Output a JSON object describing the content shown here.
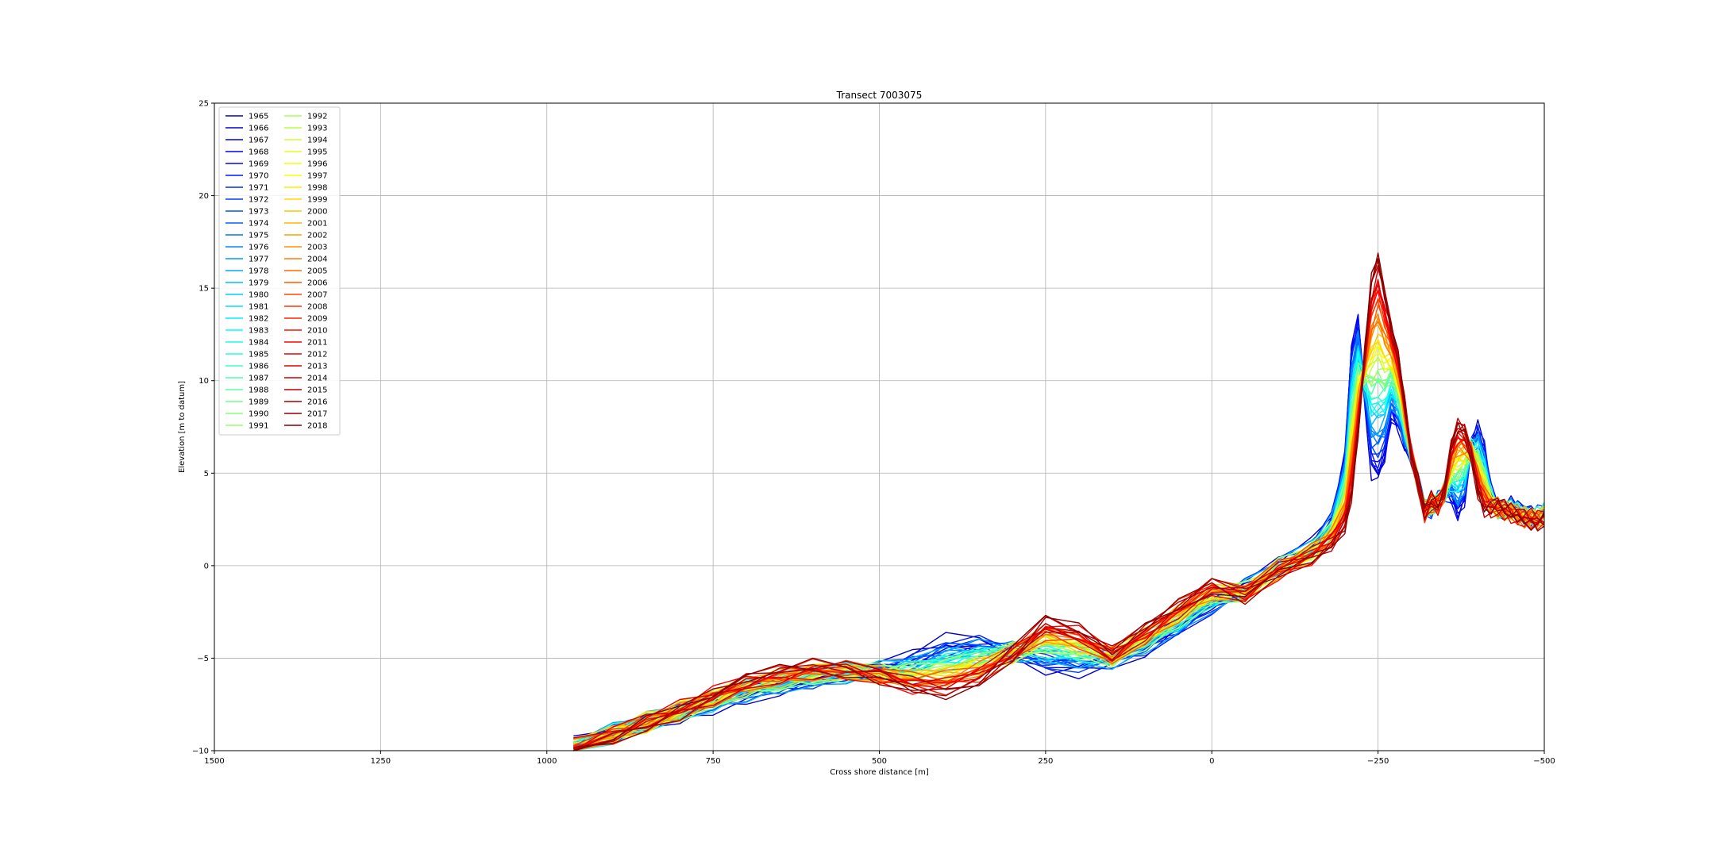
{
  "chart_data": {
    "type": "line",
    "title": "Transect 7003075",
    "xlabel": "Cross shore distance [m]",
    "ylabel": "Elevation [m to datum]",
    "xlim": [
      1500,
      -500
    ],
    "ylim": [
      -10,
      25
    ],
    "x_ticks": [
      1500,
      1250,
      1000,
      750,
      500,
      250,
      0,
      -250,
      -500
    ],
    "x_tick_labels": [
      "1500",
      "1250",
      "1000",
      "750",
      "500",
      "250",
      "0",
      "−250",
      "−500"
    ],
    "y_ticks": [
      -10,
      -5,
      0,
      5,
      10,
      15,
      20,
      25
    ],
    "y_tick_labels": [
      "−10",
      "−5",
      "0",
      "5",
      "10",
      "15",
      "20",
      "25"
    ],
    "grid": true,
    "legend_position": "top-left",
    "legend_columns": 2,
    "colormap": "jet",
    "colors": {
      "axes": "#000000",
      "grid": "#b0b0b0",
      "background": "#ffffff"
    },
    "series": [
      {
        "name": "1965"
      },
      {
        "name": "1966"
      },
      {
        "name": "1967"
      },
      {
        "name": "1968"
      },
      {
        "name": "1969"
      },
      {
        "name": "1970"
      },
      {
        "name": "1971"
      },
      {
        "name": "1972"
      },
      {
        "name": "1973"
      },
      {
        "name": "1974"
      },
      {
        "name": "1975"
      },
      {
        "name": "1976"
      },
      {
        "name": "1977"
      },
      {
        "name": "1978"
      },
      {
        "name": "1979"
      },
      {
        "name": "1980"
      },
      {
        "name": "1981"
      },
      {
        "name": "1982"
      },
      {
        "name": "1983"
      },
      {
        "name": "1984"
      },
      {
        "name": "1985"
      },
      {
        "name": "1986"
      },
      {
        "name": "1987"
      },
      {
        "name": "1988"
      },
      {
        "name": "1989"
      },
      {
        "name": "1990"
      },
      {
        "name": "1991"
      },
      {
        "name": "1992"
      },
      {
        "name": "1993"
      },
      {
        "name": "1994"
      },
      {
        "name": "1995"
      },
      {
        "name": "1996"
      },
      {
        "name": "1997"
      },
      {
        "name": "1998"
      },
      {
        "name": "1999"
      },
      {
        "name": "2000"
      },
      {
        "name": "2001"
      },
      {
        "name": "2002"
      },
      {
        "name": "2003"
      },
      {
        "name": "2004"
      },
      {
        "name": "2005"
      },
      {
        "name": "2006"
      },
      {
        "name": "2007"
      },
      {
        "name": "2008"
      },
      {
        "name": "2009"
      },
      {
        "name": "2010"
      },
      {
        "name": "2011"
      },
      {
        "name": "2012"
      },
      {
        "name": "2013"
      },
      {
        "name": "2014"
      },
      {
        "name": "2015"
      },
      {
        "name": "2016"
      },
      {
        "name": "2017"
      },
      {
        "name": "2018"
      }
    ],
    "profile_x": [
      960,
      900,
      850,
      800,
      750,
      700,
      650,
      600,
      550,
      500,
      450,
      400,
      350,
      300,
      250,
      200,
      150,
      100,
      50,
      0,
      -50,
      -100,
      -150,
      -180,
      -200,
      -210,
      -220,
      -230,
      -240,
      -250,
      -260,
      -270,
      -280,
      -290,
      -300,
      -310,
      -320,
      -330,
      -340,
      -350,
      -360,
      -370,
      -380,
      -390,
      -400,
      -410,
      -420,
      -430,
      -440,
      -450,
      -460,
      -470,
      -480,
      -490,
      -500
    ],
    "early_profile_y": [
      -9.8,
      -9.0,
      -8.4,
      -8.0,
      -7.5,
      -7.0,
      -6.6,
      -6.3,
      -5.9,
      -5.6,
      -5.0,
      -4.2,
      -4.0,
      -4.6,
      -5.5,
      -5.6,
      -5.1,
      -4.5,
      -3.5,
      -2.3,
      -1.2,
      0.0,
      1.0,
      2.5,
      6.0,
      12.0,
      13.5,
      9.0,
      5.0,
      4.5,
      5.5,
      8.0,
      7.5,
      6.5,
      6.0,
      4.5,
      3.2,
      3.0,
      3.5,
      4.0,
      3.5,
      2.6,
      3.5,
      6.5,
      7.5,
      6.5,
      4.0,
      3.0,
      3.0,
      3.2,
      3.0,
      2.8,
      2.7,
      2.8,
      3.0
    ],
    "late_profile_y": [
      -9.9,
      -9.2,
      -8.5,
      -7.8,
      -7.0,
      -6.2,
      -5.8,
      -5.5,
      -5.6,
      -6.0,
      -6.6,
      -6.8,
      -6.2,
      -4.8,
      -3.0,
      -3.5,
      -4.8,
      -3.5,
      -2.2,
      -1.0,
      -1.6,
      -0.3,
      0.5,
      1.2,
      2.0,
      3.5,
      7.0,
      11.5,
      15.5,
      16.8,
      15.0,
      13.0,
      11.5,
      9.0,
      6.0,
      4.5,
      2.8,
      3.5,
      3.2,
      4.0,
      6.5,
      7.8,
      7.5,
      6.0,
      4.0,
      3.0,
      3.0,
      3.2,
      3.0,
      2.8,
      2.6,
      2.5,
      2.5,
      2.4,
      2.5
    ]
  }
}
